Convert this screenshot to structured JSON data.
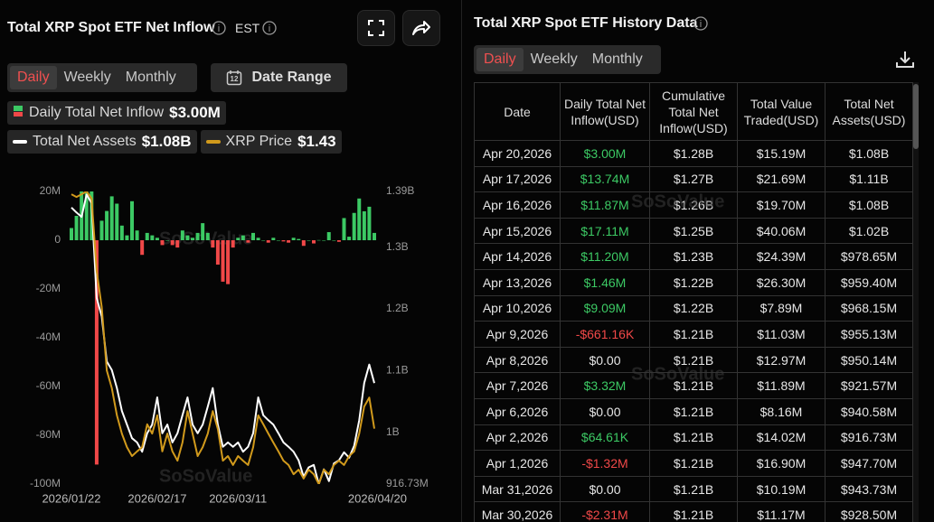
{
  "header": {
    "title": "Total XRP Spot ETF Net Inflow",
    "timezone": "EST"
  },
  "tabs": {
    "items": [
      "Daily",
      "Weekly",
      "Monthly"
    ],
    "active": 0
  },
  "date_range": "Date Range",
  "watermark": "SoSoValue",
  "chart_data": {
    "type": "combo",
    "categories": [
      "2026/01/22",
      null,
      null,
      null,
      null,
      null,
      null,
      null,
      null,
      null,
      null,
      null,
      null,
      null,
      null,
      null,
      null,
      "2026/02/17",
      null,
      null,
      null,
      null,
      null,
      null,
      null,
      null,
      null,
      null,
      null,
      null,
      null,
      null,
      null,
      "2026/03/11",
      null,
      null,
      null,
      null,
      null,
      null,
      null,
      null,
      null,
      null,
      null,
      null,
      null,
      null,
      null,
      null,
      null,
      null,
      null,
      null,
      null,
      null,
      null,
      null,
      null,
      null,
      "2026/04/20"
    ],
    "ylim": [
      -100,
      20
    ],
    "yticks": [
      {
        "value": 20,
        "label": "20M"
      },
      0,
      {
        "value": -20,
        "label": "-20M"
      },
      {
        "value": -40,
        "label": "-40M"
      },
      {
        "value": -60,
        "label": "-60M"
      },
      {
        "value": -80,
        "label": "-80M"
      },
      {
        "value": -100,
        "label": "-100M"
      }
    ],
    "y2lim": [
      0.91673,
      1.39
    ],
    "y2ticks": [
      {
        "value": 1.39,
        "label": "1.39B"
      },
      {
        "value": 1.3,
        "label": "1.3B"
      },
      {
        "value": 1.2,
        "label": "1.2B"
      },
      {
        "value": 1.1,
        "label": "1.1B"
      },
      {
        "value": 1,
        "label": "1B"
      },
      {
        "value": 0.91673,
        "label": "916.73M"
      }
    ],
    "y3lim": [
      1.25,
      2.2
    ],
    "series": [
      {
        "name": "Daily Total Net Inflow",
        "type": "bar",
        "color": "#3cc964",
        "negative_color": "#f04848",
        "latest_label": "$3.00M",
        "values": [
          5,
          10,
          22,
          25,
          22,
          -92,
          8,
          12,
          18,
          15,
          6,
          2,
          16,
          4,
          -6,
          3,
          2,
          1,
          -2,
          0,
          -2,
          -3,
          4,
          2,
          1,
          3,
          7,
          3,
          -3,
          -10,
          -17,
          -18,
          -3,
          1,
          2,
          -1,
          3,
          1,
          0,
          -1,
          1,
          0,
          -0.5,
          -1,
          1,
          0.5,
          -2.31,
          0,
          -1.32,
          0.06461,
          0,
          3.32,
          0,
          -0.66116,
          9.09,
          1.46,
          11.2,
          17.11,
          11.87,
          13.74,
          3.0
        ]
      },
      {
        "name": "Total Net Assets",
        "type": "line",
        "axis": "y2",
        "color": "#ffffff",
        "latest_label": "$1.08B",
        "values": [
          1.364,
          1.356,
          1.349,
          1.385,
          1.371,
          1.218,
          1.188,
          1.115,
          1.101,
          1.072,
          1.035,
          1.013,
          0.991,
          0.984,
          0.969,
          0.999,
          1.013,
          1.057,
          0.999,
          1.013,
          0.984,
          0.999,
          1.028,
          1.057,
          1.013,
          0.999,
          1.013,
          1.042,
          1.072,
          1.013,
          0.977,
          0.984,
          0.977,
          0.984,
          0.969,
          0.977,
          0.999,
          1.057,
          1.028,
          1.02,
          1.013,
          0.999,
          0.984,
          0.977,
          0.969,
          0.955,
          0.9285,
          0.94373,
          0.9477,
          0.91673,
          0.94058,
          0.92157,
          0.95014,
          0.95513,
          0.96815,
          0.9594,
          0.97865,
          1.02,
          1.08,
          1.11,
          1.08
        ]
      },
      {
        "name": "XRP Price",
        "type": "line",
        "axis": "y3",
        "color": "#d19a1c",
        "latest_label": "$1.43",
        "values": [
          2.191,
          2.182,
          2.191,
          2.2,
          2.177,
          1.942,
          1.825,
          1.619,
          1.561,
          1.473,
          1.414,
          1.37,
          1.341,
          1.356,
          1.37,
          1.444,
          1.414,
          1.473,
          1.356,
          1.414,
          1.356,
          1.326,
          1.385,
          1.487,
          1.414,
          1.341,
          1.37,
          1.414,
          1.487,
          1.429,
          1.326,
          1.341,
          1.312,
          1.341,
          1.326,
          1.312,
          1.37,
          1.473,
          1.444,
          1.414,
          1.385,
          1.356,
          1.326,
          1.312,
          1.282,
          1.297,
          1.268,
          1.297,
          1.282,
          1.25,
          1.297,
          1.282,
          1.312,
          1.326,
          1.312,
          1.341,
          1.356,
          1.414,
          1.502,
          1.531,
          1.43
        ]
      }
    ]
  },
  "history_table": {
    "title": "Total XRP Spot ETF History Data",
    "tabs": {
      "items": [
        "Daily",
        "Weekly",
        "Monthly"
      ],
      "active": 0
    },
    "columns": [
      "Date",
      "Daily Total Net Inflow(USD)",
      "Cumulative Total Net Inflow(USD)",
      "Total Value Traded(USD)",
      "Total Net Assets(USD)"
    ],
    "rows": [
      [
        "Apr 20,2026",
        "$3.00M",
        "$1.28B",
        "$15.19M",
        "$1.08B"
      ],
      [
        "Apr 17,2026",
        "$13.74M",
        "$1.27B",
        "$21.69M",
        "$1.11B"
      ],
      [
        "Apr 16,2026",
        "$11.87M",
        "$1.26B",
        "$19.70M",
        "$1.08B"
      ],
      [
        "Apr 15,2026",
        "$17.11M",
        "$1.25B",
        "$40.06M",
        "$1.02B"
      ],
      [
        "Apr 14,2026",
        "$11.20M",
        "$1.23B",
        "$24.39M",
        "$978.65M"
      ],
      [
        "Apr 13,2026",
        "$1.46M",
        "$1.22B",
        "$26.30M",
        "$959.40M"
      ],
      [
        "Apr 10,2026",
        "$9.09M",
        "$1.22B",
        "$7.89M",
        "$968.15M"
      ],
      [
        "Apr 9,2026",
        "-$661.16K",
        "$1.21B",
        "$11.03M",
        "$955.13M"
      ],
      [
        "Apr 8,2026",
        "$0.00",
        "$1.21B",
        "$12.97M",
        "$950.14M"
      ],
      [
        "Apr 7,2026",
        "$3.32M",
        "$1.21B",
        "$11.89M",
        "$921.57M"
      ],
      [
        "Apr 6,2026",
        "$0.00",
        "$1.21B",
        "$8.16M",
        "$940.58M"
      ],
      [
        "Apr 2,2026",
        "$64.61K",
        "$1.21B",
        "$14.02M",
        "$916.73M"
      ],
      [
        "Apr 1,2026",
        "-$1.32M",
        "$1.21B",
        "$16.90M",
        "$947.70M"
      ],
      [
        "Mar 31,2026",
        "$0.00",
        "$1.21B",
        "$10.19M",
        "$943.73M"
      ],
      [
        "Mar 30,2026",
        "-$2.31M",
        "$1.21B",
        "$11.17M",
        "$928.50M"
      ]
    ]
  }
}
